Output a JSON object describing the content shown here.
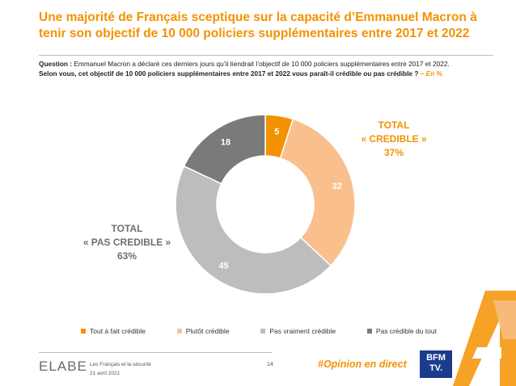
{
  "header": {
    "title": "Une majorité de Français sceptique sur la capacité d’Emmanuel Macron à tenir son objectif de 10 000 policiers supplémentaires entre 2017 et 2022",
    "question_label": "Question :",
    "question_text": "Emmanuel Macron a déclaré ces derniers jours qu’il tiendrait l’objectif de 10 000 policiers supplémentaires entre 2017 et 2022.",
    "question_strong": "Selon vous, cet objectif de 10 000 policiers supplémentaires entre 2017 et 2022 vous paraît-il crédible ou pas crédible ?",
    "question_unit": " – En %"
  },
  "totals": {
    "credible_l1": "TOTAL",
    "credible_l2": "« CREDIBLE »",
    "credible_value": "37%",
    "pas_l1": "TOTAL",
    "pas_l2": "« PAS CREDIBLE »",
    "pas_value": "63%"
  },
  "chart_data": {
    "type": "pie",
    "donut": true,
    "categories": [
      "Tout à fait crédible",
      "Plutôt crédible",
      "Pas vraiment crédible",
      "Pas crédible du tout"
    ],
    "values": [
      5,
      32,
      45,
      18
    ],
    "colors": [
      "#f39200",
      "#f9c08d",
      "#bdbdbd",
      "#7a7a7a"
    ],
    "label_colors": [
      "#ffffff",
      "#ffffff",
      "#ffffff",
      "#ffffff"
    ],
    "unit": "%",
    "legend_position": "bottom"
  },
  "footer": {
    "logo": "ELABE",
    "study": "Les Français et la sécurité",
    "date": "21 avril 2021",
    "page": "14",
    "hashtag": "#Opinion en direct",
    "bfm_l1": "BFM",
    "bfm_l2": "TV."
  }
}
